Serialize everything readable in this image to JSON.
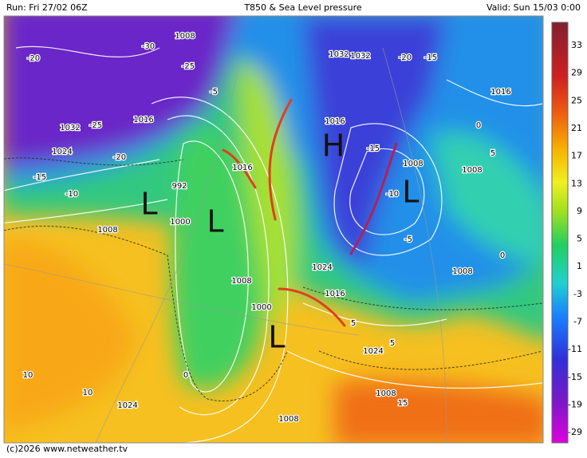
{
  "header": {
    "run": "Run: Fri 27/02 06Z",
    "title": "T850 & Sea Level pressure",
    "valid": "Valid: Sun 15/03 0:00"
  },
  "footer": "(c)2026 www.netweather.tv",
  "scale": {
    "labels": [
      33,
      29,
      25,
      21,
      17,
      13,
      9,
      5,
      1,
      -3,
      -7,
      -11,
      -15,
      -19,
      -29
    ]
  },
  "map_labels": [
    "L",
    "L",
    "L",
    "H",
    "L",
    1008,
    -30,
    -20,
    -25,
    1032,
    -25,
    -20,
    1016,
    1024,
    -15,
    -10,
    992,
    1000,
    1008,
    1016,
    1024,
    1032,
    -5,
    0,
    5,
    10,
    1000,
    1008,
    -15,
    -10,
    1008,
    1016,
    -5,
    1024,
    1008,
    0,
    1008,
    1024,
    5,
    15,
    1008,
    1032,
    -20,
    -15,
    1016,
    5,
    0,
    10,
    1016,
    1008
  ]
}
